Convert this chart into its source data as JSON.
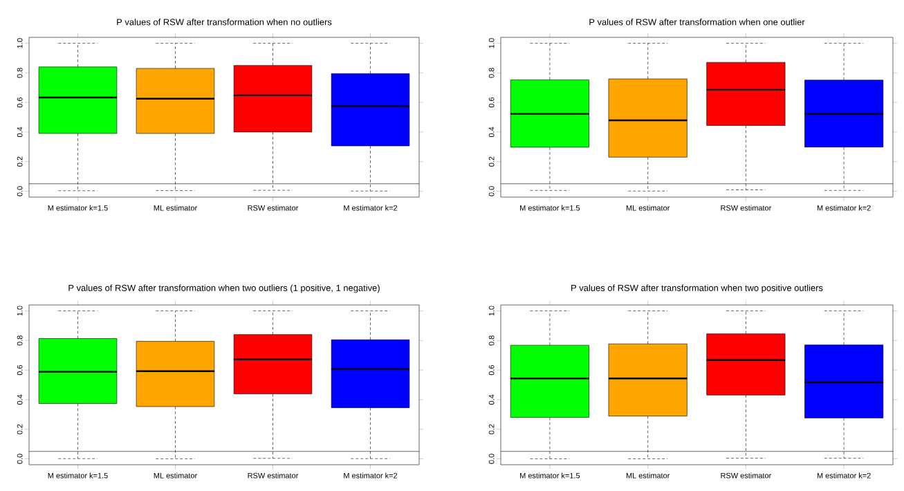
{
  "chart_data": [
    {
      "type": "box",
      "title": "P values of RSW after transformation when no outliers",
      "categories": [
        "M estimator k=1.5",
        "ML estimator",
        "RSW estimator",
        "M estimator k=2"
      ],
      "boxes": [
        {
          "low": 0.003,
          "q1": 0.39,
          "median": 0.633,
          "q3": 0.84,
          "high": 1.0
        },
        {
          "low": 0.004,
          "q1": 0.39,
          "median": 0.625,
          "q3": 0.83,
          "high": 1.0
        },
        {
          "low": 0.006,
          "q1": 0.4,
          "median": 0.648,
          "q3": 0.85,
          "high": 1.0
        },
        {
          "low": 0.001,
          "q1": 0.306,
          "median": 0.574,
          "q3": 0.795,
          "high": 1.0
        }
      ],
      "colors": [
        "#00ff00",
        "#ffa500",
        "#ff0000",
        "#0000ff"
      ],
      "ylim": [
        -0.04,
        1.04
      ],
      "yticks": [
        {
          "value": 0,
          "label": "0.0"
        },
        {
          "value": 0.2,
          "label": "0.2"
        },
        {
          "value": 0.4,
          "label": "0.4"
        },
        {
          "value": 0.6,
          "label": "0.6"
        },
        {
          "value": 0.8,
          "label": "0.8"
        },
        {
          "value": 1,
          "label": "1.0"
        }
      ],
      "ref_lines": [
        {
          "axis": "y",
          "value": 0.05
        }
      ]
    },
    {
      "type": "box",
      "title": "P values of RSW after transformation when one outlier",
      "categories": [
        "M estimator k=1.5",
        "ML estimator",
        "RSW estimator",
        "M estimator k=2"
      ],
      "boxes": [
        {
          "low": 0.005,
          "q1": 0.297,
          "median": 0.523,
          "q3": 0.753,
          "high": 1.0
        },
        {
          "low": 0.001,
          "q1": 0.23,
          "median": 0.479,
          "q3": 0.759,
          "high": 1.0
        },
        {
          "low": 0.009,
          "q1": 0.444,
          "median": 0.685,
          "q3": 0.871,
          "high": 1.0
        },
        {
          "low": 0.005,
          "q1": 0.298,
          "median": 0.523,
          "q3": 0.751,
          "high": 1.0
        }
      ],
      "colors": [
        "#00ff00",
        "#ffa500",
        "#ff0000",
        "#0000ff"
      ],
      "ylim": [
        -0.04,
        1.04
      ],
      "yticks": [
        {
          "value": 0,
          "label": "0.0"
        },
        {
          "value": 0.2,
          "label": "0.2"
        },
        {
          "value": 0.4,
          "label": "0.4"
        },
        {
          "value": 0.6,
          "label": "0.6"
        },
        {
          "value": 0.8,
          "label": "0.8"
        },
        {
          "value": 1,
          "label": "1.0"
        }
      ],
      "ref_lines": [
        {
          "axis": "y",
          "value": 0.05
        }
      ]
    },
    {
      "type": "box",
      "title": "P values of RSW after transformation when two outliers (1 positive, 1 negative)",
      "categories": [
        "M estimator k=1.5",
        "ML estimator",
        "RSW estimator",
        "M estimator k=2"
      ],
      "boxes": [
        {
          "low": 0.001,
          "q1": 0.374,
          "median": 0.588,
          "q3": 0.813,
          "high": 1.0
        },
        {
          "low": 0.0,
          "q1": 0.353,
          "median": 0.592,
          "q3": 0.794,
          "high": 1.0
        },
        {
          "low": 0.003,
          "q1": 0.439,
          "median": 0.672,
          "q3": 0.84,
          "high": 1.0
        },
        {
          "low": 0.001,
          "q1": 0.345,
          "median": 0.607,
          "q3": 0.805,
          "high": 1.0
        }
      ],
      "colors": [
        "#00ff00",
        "#ffa500",
        "#ff0000",
        "#0000ff"
      ],
      "ylim": [
        -0.04,
        1.04
      ],
      "yticks": [
        {
          "value": 0,
          "label": "0.0"
        },
        {
          "value": 0.2,
          "label": "0.2"
        },
        {
          "value": 0.4,
          "label": "0.4"
        },
        {
          "value": 0.6,
          "label": "0.6"
        },
        {
          "value": 0.8,
          "label": "0.8"
        },
        {
          "value": 1,
          "label": "1.0"
        }
      ],
      "ref_lines": [
        {
          "axis": "y",
          "value": 0.05
        }
      ]
    },
    {
      "type": "box",
      "title": "P values of RSW after transformation when two positive outliers",
      "categories": [
        "M estimator k=1.5",
        "ML estimator",
        "RSW estimator",
        "M estimator k=2"
      ],
      "boxes": [
        {
          "low": 0.0,
          "q1": 0.28,
          "median": 0.543,
          "q3": 0.768,
          "high": 1.0
        },
        {
          "low": 0.0,
          "q1": 0.289,
          "median": 0.543,
          "q3": 0.777,
          "high": 1.0
        },
        {
          "low": 0.004,
          "q1": 0.431,
          "median": 0.667,
          "q3": 0.845,
          "high": 1.0
        },
        {
          "low": 0.004,
          "q1": 0.276,
          "median": 0.517,
          "q3": 0.77,
          "high": 1.0
        }
      ],
      "colors": [
        "#00ff00",
        "#ffa500",
        "#ff0000",
        "#0000ff"
      ],
      "ylim": [
        -0.04,
        1.04
      ],
      "yticks": [
        {
          "value": 0,
          "label": "0.0"
        },
        {
          "value": 0.2,
          "label": "0.2"
        },
        {
          "value": 0.4,
          "label": "0.4"
        },
        {
          "value": 0.6,
          "label": "0.6"
        },
        {
          "value": 0.8,
          "label": "0.8"
        },
        {
          "value": 1,
          "label": "1.0"
        }
      ],
      "ref_lines": [
        {
          "axis": "y",
          "value": 0.05
        }
      ]
    }
  ]
}
